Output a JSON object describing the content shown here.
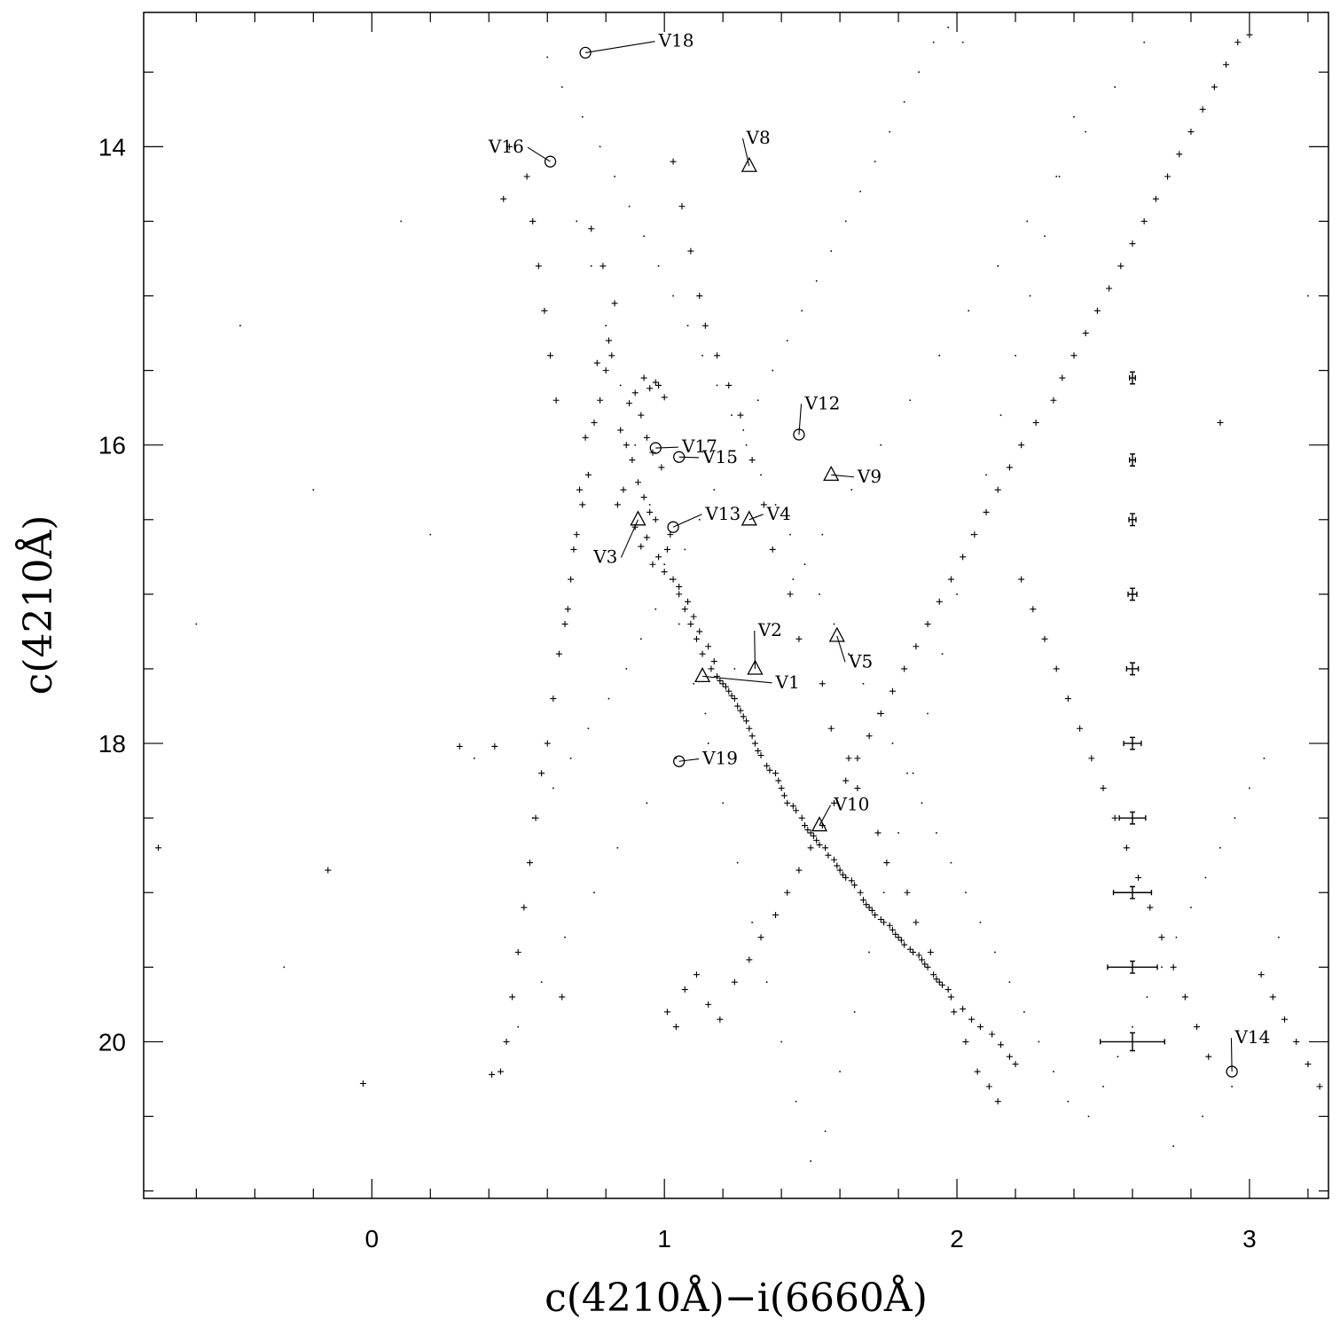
{
  "chart_data": {
    "type": "scatter",
    "xlabel": "c(4210Å)−i(6660Å)",
    "ylabel": "c(4210Å)",
    "xlim": [
      -0.78,
      3.27
    ],
    "ylim": [
      21.05,
      13.1
    ],
    "y_inverted": true,
    "x_ticks": [
      0,
      1,
      2,
      3
    ],
    "y_ticks": [
      14,
      16,
      18,
      20
    ],
    "x_tick_labels": [
      "0",
      "1",
      "2",
      "3"
    ],
    "y_tick_labels": [
      "14",
      "16",
      "18",
      "20"
    ],
    "x_minor_step": 0.2,
    "y_minor_step": 0.5,
    "grid": false,
    "legend": "none",
    "marker_colors": {
      "points": "#000000"
    },
    "series": [
      {
        "marker": "plus",
        "x": [
          0.93,
          0.95,
          0.97,
          0.9,
          0.88,
          0.92,
          0.98,
          1.0,
          0.85,
          0.87,
          0.89,
          0.94,
          0.96,
          0.99,
          0.91,
          0.86,
          0.84,
          0.93,
          0.95,
          0.9,
          0.97,
          1.02,
          1.01,
          0.98,
          0.94,
          0.92,
          0.96,
          1.0,
          1.03,
          1.05,
          1.08,
          1.1,
          1.12,
          1.15,
          1.17,
          1.18,
          1.2,
          1.22,
          1.24,
          1.26,
          1.28,
          1.3,
          1.32,
          1.35,
          1.38,
          1.4,
          1.42,
          1.45,
          1.48,
          1.5,
          1.52,
          1.55,
          1.58,
          1.6,
          1.62,
          1.65,
          1.68,
          1.7,
          1.72,
          1.75,
          1.78,
          1.8,
          1.82,
          1.85,
          1.88,
          1.9,
          1.92,
          1.95,
          1.98,
          2.02,
          2.05,
          2.08,
          2.12,
          2.15,
          2.18,
          2.2,
          1.05,
          1.07,
          1.09,
          1.11,
          1.13,
          1.16,
          1.19,
          1.21,
          1.23,
          1.25,
          1.27,
          1.29,
          1.31,
          1.33,
          1.36,
          1.39,
          1.41,
          1.44,
          1.47,
          1.49,
          1.51,
          1.53,
          1.56,
          1.59,
          1.61,
          1.64,
          1.67,
          1.69,
          1.71,
          1.74,
          1.77,
          1.79,
          1.81,
          1.84,
          1.87,
          1.89,
          1.93,
          1.97,
          0.82,
          0.8,
          0.78,
          0.76,
          0.74,
          0.72,
          0.7,
          0.68,
          0.66,
          0.64,
          0.62,
          0.6,
          0.58,
          0.56,
          0.54,
          0.52,
          0.5,
          0.48,
          0.46,
          0.44,
          0.42,
          0.75,
          0.79,
          0.83,
          0.81,
          0.77,
          0.73,
          0.71,
          0.69,
          0.67,
          1.03,
          1.06,
          1.09,
          1.12,
          1.14,
          1.18,
          1.22,
          1.26,
          1.3,
          1.34,
          1.37,
          1.43,
          1.46,
          1.54,
          1.57,
          1.63,
          1.66,
          1.73,
          1.76,
          1.83,
          1.86,
          1.91,
          1.94,
          1.99,
          2.03,
          2.07,
          2.11,
          2.14,
          2.22,
          2.26,
          2.3,
          2.34,
          2.38,
          2.42,
          2.46,
          2.5,
          2.54,
          2.58,
          2.62,
          2.66,
          2.7,
          2.74,
          2.78,
          2.82,
          2.86,
          2.9,
          -0.73,
          -0.15,
          -0.03,
          0.3,
          0.41,
          0.45,
          0.47,
          0.53,
          0.55,
          0.57,
          0.59,
          0.61,
          0.63,
          0.65,
          1.01,
          1.04,
          1.07,
          1.11,
          1.15,
          1.19,
          1.24,
          1.29,
          1.33,
          1.38,
          1.42,
          1.46,
          1.5,
          1.54,
          1.58,
          1.62,
          1.66,
          1.7,
          1.74,
          1.78,
          1.82,
          1.86,
          1.9,
          1.94,
          1.98,
          2.02,
          2.06,
          2.1,
          2.14,
          2.18,
          2.22,
          2.27,
          2.33,
          2.36,
          2.4,
          2.44,
          2.48,
          2.52,
          2.56,
          2.6,
          2.64,
          2.68,
          2.72,
          2.76,
          2.8,
          2.84,
          2.88,
          2.92,
          2.96,
          3.0,
          3.04,
          3.08,
          3.12,
          3.16,
          3.2,
          3.24
        ],
        "y": [
          15.55,
          15.62,
          15.58,
          15.65,
          15.72,
          15.8,
          15.6,
          15.68,
          15.9,
          16.0,
          16.1,
          15.95,
          16.05,
          16.15,
          16.25,
          16.3,
          16.4,
          16.35,
          16.45,
          16.55,
          16.5,
          16.6,
          16.7,
          16.75,
          16.62,
          16.68,
          16.8,
          16.85,
          16.9,
          16.95,
          17.05,
          17.15,
          17.25,
          17.35,
          17.45,
          17.55,
          17.6,
          17.65,
          17.7,
          17.78,
          17.85,
          17.95,
          18.05,
          18.15,
          18.2,
          18.3,
          18.4,
          18.45,
          18.55,
          18.6,
          18.65,
          18.7,
          18.78,
          18.85,
          18.9,
          18.95,
          19.05,
          19.1,
          19.15,
          19.2,
          19.25,
          19.3,
          19.35,
          19.4,
          19.45,
          19.5,
          19.55,
          19.62,
          19.7,
          19.78,
          19.85,
          19.9,
          19.95,
          20.02,
          20.1,
          20.15,
          17.0,
          17.1,
          17.2,
          17.3,
          17.4,
          17.5,
          17.58,
          17.62,
          17.68,
          17.75,
          17.82,
          17.9,
          18.0,
          18.08,
          18.18,
          18.25,
          18.35,
          18.42,
          18.5,
          18.58,
          18.62,
          18.68,
          18.75,
          18.82,
          18.88,
          18.92,
          19.0,
          19.08,
          19.12,
          19.18,
          19.22,
          19.28,
          19.32,
          19.38,
          19.42,
          19.48,
          19.58,
          19.65,
          15.4,
          15.5,
          15.7,
          15.85,
          16.2,
          16.4,
          16.6,
          16.9,
          17.2,
          17.4,
          17.7,
          18.0,
          18.2,
          18.5,
          18.8,
          19.1,
          19.4,
          19.7,
          20.0,
          20.2,
          18.02,
          14.55,
          14.8,
          15.05,
          15.3,
          15.45,
          15.95,
          16.3,
          16.7,
          17.1,
          14.1,
          14.4,
          14.7,
          15.0,
          15.2,
          15.4,
          15.6,
          15.8,
          16.1,
          16.4,
          16.7,
          17.0,
          17.3,
          17.6,
          17.9,
          18.1,
          18.3,
          18.6,
          18.8,
          19.0,
          19.2,
          19.4,
          19.6,
          19.8,
          20.0,
          20.2,
          20.3,
          20.4,
          16.9,
          17.1,
          17.3,
          17.5,
          17.7,
          17.9,
          18.1,
          18.3,
          18.5,
          18.7,
          18.9,
          19.1,
          19.3,
          19.5,
          19.7,
          19.9,
          20.1,
          15.85,
          18.7,
          18.85,
          20.28,
          18.02,
          20.22,
          14.35,
          14.0,
          14.2,
          14.5,
          14.8,
          15.1,
          15.4,
          15.7,
          19.7,
          19.8,
          19.9,
          19.65,
          19.55,
          19.75,
          19.85,
          19.6,
          19.45,
          19.3,
          19.15,
          19.0,
          18.85,
          18.7,
          18.55,
          18.4,
          18.25,
          18.1,
          17.95,
          17.8,
          17.65,
          17.5,
          17.35,
          17.2,
          17.05,
          16.9,
          16.75,
          16.6,
          16.45,
          16.3,
          16.15,
          16.0,
          15.85,
          15.7,
          15.55,
          15.4,
          15.25,
          15.1,
          14.95,
          14.8,
          14.65,
          14.5,
          14.35,
          14.2,
          14.05,
          13.9,
          13.75,
          13.6,
          13.45,
          13.3,
          13.25,
          19.55,
          19.7,
          19.85,
          20.0,
          20.15,
          20.3
        ]
      },
      {
        "marker": "dot",
        "x": [
          0.7,
          0.75,
          0.8,
          0.85,
          0.9,
          0.95,
          1.0,
          1.05,
          1.1,
          1.15,
          1.2,
          1.25,
          1.3,
          1.35,
          1.4,
          1.45,
          1.5,
          1.55,
          1.6,
          1.65,
          1.7,
          1.75,
          1.8,
          1.85,
          1.9,
          1.95,
          2.0,
          2.05,
          2.1,
          2.15,
          2.2,
          2.25,
          2.3,
          2.35,
          2.4,
          2.45,
          2.5,
          2.55,
          2.6,
          2.65,
          2.7,
          2.75,
          2.8,
          2.85,
          2.9,
          2.95,
          3.0,
          3.05,
          0.6,
          0.65,
          0.72,
          0.78,
          0.83,
          0.88,
          0.93,
          0.98,
          1.03,
          1.08,
          1.13,
          1.18,
          1.23,
          1.28,
          1.33,
          1.38,
          1.43,
          1.48,
          1.53,
          1.58,
          1.63,
          1.68,
          1.73,
          1.78,
          1.83,
          1.88,
          1.93,
          1.98,
          2.03,
          2.08,
          2.13,
          2.18,
          2.23,
          2.28,
          2.33,
          2.38,
          0.55,
          0.62,
          0.68,
          0.74,
          0.81,
          0.87,
          0.92,
          0.97,
          1.02,
          1.07,
          1.12,
          1.17,
          1.22,
          1.27,
          1.32,
          1.37,
          1.42,
          1.47,
          1.52,
          1.57,
          1.62,
          1.67,
          1.72,
          1.77,
          1.82,
          1.87,
          1.92,
          1.97,
          2.02,
          -0.6,
          -0.45,
          -0.3,
          -0.2,
          0.1,
          0.2,
          0.35,
          3.1,
          3.2,
          0.5,
          0.58,
          0.66,
          0.76,
          0.84,
          0.94,
          1.04,
          1.14,
          1.24,
          1.34,
          1.44,
          1.54,
          1.64,
          1.74,
          1.84,
          1.94,
          2.04,
          2.14,
          2.24,
          2.34,
          2.44,
          2.54,
          2.64,
          2.74,
          2.84,
          2.94
        ],
        "y": [
          14.5,
          14.8,
          15.2,
          15.6,
          16.0,
          16.4,
          16.8,
          17.2,
          17.6,
          18.0,
          18.4,
          18.8,
          19.2,
          19.6,
          20.0,
          20.4,
          20.8,
          20.6,
          20.2,
          19.8,
          19.4,
          19.0,
          18.6,
          18.2,
          17.8,
          17.4,
          17.0,
          16.6,
          16.2,
          15.8,
          15.4,
          15.0,
          14.6,
          14.2,
          13.8,
          20.5,
          20.3,
          20.1,
          19.9,
          19.7,
          19.5,
          19.3,
          19.1,
          18.9,
          18.7,
          18.5,
          18.3,
          18.1,
          13.4,
          13.6,
          13.8,
          14.0,
          14.2,
          14.4,
          14.6,
          14.8,
          15.0,
          15.2,
          15.4,
          15.6,
          15.8,
          16.0,
          16.2,
          16.4,
          16.6,
          16.8,
          17.0,
          17.2,
          17.4,
          17.6,
          17.8,
          18.0,
          18.2,
          18.4,
          18.6,
          18.8,
          19.0,
          19.2,
          19.4,
          19.6,
          19.8,
          20.0,
          20.2,
          20.4,
          18.5,
          18.3,
          18.1,
          17.9,
          17.7,
          17.5,
          17.3,
          17.1,
          16.9,
          16.7,
          16.5,
          16.3,
          16.1,
          15.9,
          15.7,
          15.5,
          15.3,
          15.1,
          14.9,
          14.7,
          14.5,
          14.3,
          14.1,
          13.9,
          13.7,
          13.5,
          13.3,
          13.2,
          13.3,
          17.2,
          15.2,
          19.5,
          16.3,
          14.5,
          16.6,
          18.1,
          19.3,
          15.0,
          19.9,
          19.6,
          19.3,
          19.0,
          18.7,
          18.4,
          18.1,
          17.8,
          17.5,
          17.2,
          16.9,
          16.6,
          16.3,
          16.0,
          15.7,
          15.4,
          15.1,
          14.8,
          14.5,
          14.2,
          13.9,
          13.6,
          13.3,
          20.7,
          20.5,
          20.3
        ]
      },
      {
        "marker": "errorbar",
        "x": [
          2.6,
          2.6,
          2.6,
          2.6,
          2.6,
          2.6,
          2.6,
          2.6,
          2.6,
          2.6
        ],
        "y": [
          15.55,
          16.1,
          16.5,
          17.0,
          17.5,
          18.0,
          18.5,
          19.0,
          19.5,
          20.0
        ],
        "x_err": [
          0.01,
          0.01,
          0.012,
          0.015,
          0.02,
          0.03,
          0.045,
          0.065,
          0.085,
          0.11
        ],
        "y_err": [
          0.04,
          0.04,
          0.04,
          0.04,
          0.04,
          0.04,
          0.04,
          0.04,
          0.04,
          0.06
        ]
      }
    ],
    "variables": [
      {
        "label": "V1",
        "marker": "triangle",
        "x": 1.13,
        "y": 17.55,
        "lx": 1.38,
        "ly": 17.63,
        "anchor": "start"
      },
      {
        "label": "V2",
        "marker": "triangle",
        "x": 1.31,
        "y": 17.5,
        "lx": 1.32,
        "ly": 17.28,
        "anchor": "start"
      },
      {
        "label": "V3",
        "marker": "triangle",
        "x": 0.91,
        "y": 16.5,
        "lx": 0.84,
        "ly": 16.79,
        "anchor": "end"
      },
      {
        "label": "V4",
        "marker": "triangle",
        "x": 1.29,
        "y": 16.5,
        "lx": 1.35,
        "ly": 16.5,
        "anchor": "start"
      },
      {
        "label": "V5",
        "marker": "triangle",
        "x": 1.59,
        "y": 17.28,
        "lx": 1.63,
        "ly": 17.49,
        "anchor": "start"
      },
      {
        "label": "V8",
        "marker": "triangle",
        "x": 1.29,
        "y": 14.13,
        "lx": 1.28,
        "ly": 13.98,
        "anchor": "start"
      },
      {
        "label": "V9",
        "marker": "triangle",
        "x": 1.57,
        "y": 16.2,
        "lx": 1.66,
        "ly": 16.25,
        "anchor": "start"
      },
      {
        "label": "V10",
        "marker": "triangle",
        "x": 1.53,
        "y": 18.55,
        "lx": 1.58,
        "ly": 18.45,
        "anchor": "start"
      },
      {
        "label": "V12",
        "marker": "circle",
        "x": 1.46,
        "y": 15.93,
        "lx": 1.48,
        "ly": 15.76,
        "anchor": "start"
      },
      {
        "label": "V13",
        "marker": "circle",
        "x": 1.03,
        "y": 16.55,
        "lx": 1.14,
        "ly": 16.5,
        "anchor": "start"
      },
      {
        "label": "V14",
        "marker": "circle",
        "x": 2.94,
        "y": 20.2,
        "lx": 2.95,
        "ly": 20.01,
        "anchor": "start"
      },
      {
        "label": "V15",
        "marker": "circle",
        "x": 1.05,
        "y": 16.08,
        "lx": 1.13,
        "ly": 16.12,
        "anchor": "start"
      },
      {
        "label": "V16",
        "marker": "circle",
        "x": 0.61,
        "y": 14.1,
        "lx": 0.52,
        "ly": 14.04,
        "anchor": "end"
      },
      {
        "label": "V17",
        "marker": "circle",
        "x": 0.97,
        "y": 16.02,
        "lx": 1.06,
        "ly": 16.05,
        "anchor": "start"
      },
      {
        "label": "V18",
        "marker": "circle",
        "x": 0.73,
        "y": 13.37,
        "lx": 0.98,
        "ly": 13.33,
        "anchor": "start"
      },
      {
        "label": "V19",
        "marker": "circle",
        "x": 1.05,
        "y": 18.12,
        "lx": 1.13,
        "ly": 18.14,
        "anchor": "start"
      }
    ]
  }
}
